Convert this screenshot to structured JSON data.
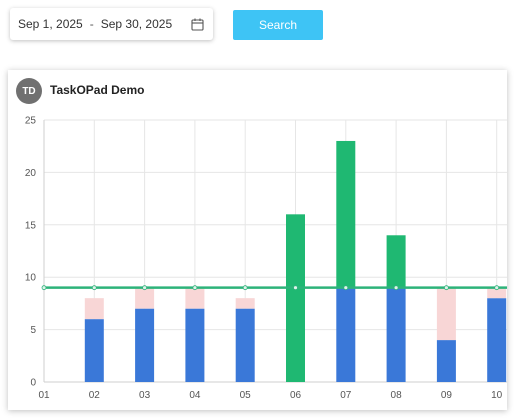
{
  "date_range": {
    "start": "Sep 1, 2025",
    "separator": "-",
    "end": "Sep 30, 2025",
    "icon": "calendar-icon"
  },
  "search_button": {
    "label": "Search",
    "color": "#3ec4f5"
  },
  "card": {
    "avatar_initials": "TD",
    "title": "TaskOPad Demo"
  },
  "chart_data": {
    "type": "bar",
    "stacked": true,
    "categories": [
      "01",
      "02",
      "03",
      "04",
      "05",
      "06",
      "07",
      "08",
      "09",
      "10"
    ],
    "ylim": [
      0,
      25
    ],
    "yticks": [
      "0",
      "5",
      "10",
      "15",
      "20",
      "25"
    ],
    "xlabel": "",
    "ylabel": "",
    "grid": true,
    "series": [
      {
        "values": [
          0,
          6,
          7,
          7,
          7,
          0,
          9,
          9,
          4,
          8
        ],
        "color": "#3a78d8"
      },
      {
        "values": [
          0,
          0,
          0,
          0,
          0,
          16,
          14,
          5,
          0,
          0
        ],
        "color": "#1fb872"
      },
      {
        "values": [
          0,
          2,
          2,
          2,
          1,
          0,
          0,
          0,
          5,
          1
        ],
        "color": "#f8d6d6"
      }
    ],
    "reference_line": {
      "value": 9,
      "color": "#2db37a"
    }
  }
}
